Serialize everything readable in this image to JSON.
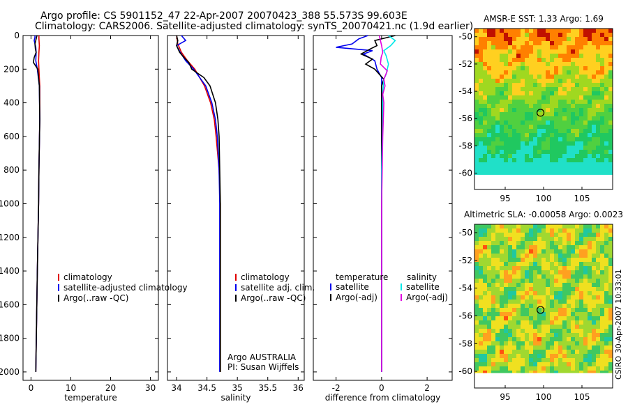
{
  "header": {
    "line1": "Argo profile: CS 5901152_47 22-Apr-2007 20070423_388 55.573S 99.603E",
    "line2": "Climatology: CARS2006. Satellite-adjusted climatology: synTS_20070421.nc (1.9d earlier)"
  },
  "colors": {
    "red": "#e00000",
    "blue": "#0000ee",
    "black": "#000000",
    "cyan": "#00e8e8",
    "magenta": "#e000e0"
  },
  "chart_data": [
    {
      "type": "line",
      "name": "temperature-panel",
      "xlabel": "temperature",
      "ylabel": "",
      "xlim": [
        -2,
        32
      ],
      "ylim": [
        2050,
        0
      ],
      "xticks": [
        0,
        10,
        20,
        30
      ],
      "yticks": [
        0,
        200,
        400,
        600,
        800,
        1000,
        1200,
        1400,
        1600,
        1800,
        2000
      ],
      "legend": [
        "climatology",
        "satellite-adjusted climatology",
        "Argo(..raw -QC)"
      ],
      "series": [
        {
          "name": "climatology",
          "color": "red",
          "depth": [
            0,
            20,
            60,
            100,
            150,
            200,
            300,
            500,
            800,
            1000,
            1400,
            2000
          ],
          "values": [
            2.0,
            2.0,
            2.1,
            2.0,
            1.9,
            2.0,
            2.2,
            2.2,
            2.0,
            1.9,
            1.6,
            1.2
          ]
        },
        {
          "name": "satellite-adjusted climatology",
          "color": "blue",
          "depth": [
            0,
            10,
            30,
            70,
            100,
            150,
            200,
            300,
            500,
            800,
            1000,
            1400,
            2000
          ],
          "values": [
            1.0,
            1.0,
            0.8,
            1.2,
            1.3,
            1.2,
            1.6,
            2.1,
            2.2,
            2.0,
            1.9,
            1.6,
            1.2
          ]
        },
        {
          "name": "Argo(..raw -QC)",
          "color": "black",
          "depth": [
            0,
            20,
            50,
            80,
            100,
            130,
            160,
            200,
            300,
            500,
            800,
            1000,
            1400,
            2000
          ],
          "values": [
            1.5,
            1.3,
            1.0,
            1.1,
            1.3,
            0.8,
            0.6,
            1.7,
            2.1,
            2.2,
            2.0,
            1.9,
            1.6,
            1.2
          ]
        }
      ]
    },
    {
      "type": "line",
      "name": "salinity-panel",
      "xlabel": "salinity",
      "ylabel": "",
      "xlim": [
        33.85,
        36.1
      ],
      "ylim": [
        2050,
        0
      ],
      "xticks": [
        34,
        34.5,
        35,
        35.5,
        36
      ],
      "yticks": [],
      "legend": [
        "climatology",
        "satellite adj. clim.",
        "Argo(..raw -QC)"
      ],
      "note1": "Argo AUSTRALIA",
      "note2": "PI: Susan Wijffels",
      "series": [
        {
          "name": "climatology",
          "color": "red",
          "depth": [
            0,
            50,
            100,
            150,
            200,
            300,
            400,
            500,
            600,
            800,
            1000,
            1400,
            2000
          ],
          "values": [
            34.0,
            34.02,
            34.08,
            34.18,
            34.3,
            34.46,
            34.56,
            34.62,
            34.65,
            34.7,
            34.72,
            34.72,
            34.72
          ]
        },
        {
          "name": "satellite adj. clim.",
          "color": "blue",
          "depth": [
            0,
            30,
            60,
            100,
            150,
            200,
            300,
            400,
            500,
            600,
            800,
            1000,
            1400,
            2000
          ],
          "values": [
            34.08,
            34.15,
            34.0,
            34.06,
            34.15,
            34.28,
            34.48,
            34.58,
            34.64,
            34.67,
            34.7,
            34.71,
            34.71,
            34.71
          ]
        },
        {
          "name": "Argo(..raw -QC)",
          "color": "black",
          "depth": [
            0,
            30,
            60,
            100,
            130,
            160,
            200,
            250,
            300,
            400,
            500,
            600,
            800,
            1000,
            1400,
            2000
          ],
          "values": [
            34.0,
            34.02,
            34.0,
            34.05,
            34.12,
            34.2,
            34.25,
            34.45,
            34.55,
            34.64,
            34.68,
            34.7,
            34.71,
            34.72,
            34.72,
            34.72
          ]
        }
      ]
    },
    {
      "type": "line",
      "name": "difference-panel",
      "xlabel": "difference from climatology",
      "ylabel": "",
      "xlim": [
        -3,
        3.1
      ],
      "ylim": [
        2050,
        0
      ],
      "xticks": [
        -2,
        0,
        2
      ],
      "yticks": [],
      "legend_groups": [
        {
          "title": "temperature",
          "items": [
            "satellite",
            "Argo(-adj)"
          ]
        },
        {
          "title": "salinity",
          "items": [
            "satellite",
            "Argo(-adj)"
          ]
        }
      ],
      "series": [
        {
          "name": "temperature satellite",
          "color": "blue",
          "depth": [
            0,
            20,
            50,
            70,
            90,
            110,
            150,
            200,
            250,
            300,
            400,
            800,
            2000
          ],
          "values": [
            -0.6,
            -1.0,
            -1.3,
            -2.0,
            -0.4,
            -0.8,
            -0.3,
            -0.2,
            0.0,
            0.0,
            0.0,
            0.0,
            0.0
          ]
        },
        {
          "name": "temperature Argo(-adj)",
          "color": "black",
          "depth": [
            0,
            30,
            60,
            80,
            110,
            140,
            170,
            200,
            260,
            300,
            400,
            2000
          ],
          "values": [
            0.6,
            -0.3,
            -0.2,
            -0.5,
            -0.9,
            -0.4,
            -0.7,
            -0.3,
            0.1,
            0.0,
            0.0,
            0.0
          ]
        },
        {
          "name": "salinity satellite",
          "color": "cyan",
          "depth": [
            0,
            30,
            60,
            90,
            120,
            170,
            230,
            260,
            350,
            500,
            800,
            2000
          ],
          "values": [
            0.3,
            0.6,
            0.4,
            0.1,
            0.2,
            0.3,
            0.2,
            0.1,
            0.05,
            0.05,
            0.0,
            0.0
          ]
        },
        {
          "name": "salinity Argo(-adj)",
          "color": "magenta",
          "depth": [
            0,
            30,
            60,
            100,
            130,
            170,
            210,
            260,
            300,
            350,
            400,
            600,
            1000,
            2000
          ],
          "values": [
            -0.1,
            -0.05,
            0.0,
            0.05,
            -0.02,
            -0.05,
            0.25,
            0.1,
            0.15,
            0.05,
            0.1,
            0.05,
            0.0,
            0.0
          ]
        }
      ]
    },
    {
      "type": "heatmap",
      "name": "sst-map",
      "title": "AMSR-E SST: 1.33 Argo: 1.69",
      "xlim": [
        91,
        109
      ],
      "ylim": [
        -61.2,
        -49.4
      ],
      "xticks": [
        95,
        100,
        105
      ],
      "yticks": [
        -50,
        -52,
        -54,
        -56,
        -58,
        -60
      ],
      "data_extent_y": [
        -60.1,
        -49.4
      ],
      "marker": {
        "lon": 99.6,
        "lat": -55.573
      },
      "colorscale": [
        "#20e0c8",
        "#20c860",
        "#50d040",
        "#a0d820",
        "#ffd020",
        "#ff8000",
        "#c01000"
      ]
    },
    {
      "type": "heatmap",
      "name": "sla-map",
      "title": "Altimetric SLA: -0.00058 Argo: 0.0023",
      "xlim": [
        91,
        109
      ],
      "ylim": [
        -61.2,
        -49.4
      ],
      "xticks": [
        95,
        100,
        105
      ],
      "yticks": [
        -50,
        -52,
        -54,
        -56,
        -58,
        -60
      ],
      "data_extent_y": [
        -60.1,
        -49.4
      ],
      "marker": {
        "lon": 99.6,
        "lat": -55.573
      },
      "colorscale": [
        "#20c8a0",
        "#40c860",
        "#a0d830",
        "#f0e020",
        "#ffa020",
        "#ff5010"
      ]
    }
  ],
  "credit": "CSIRO 30-Apr-2007 10:33:01"
}
